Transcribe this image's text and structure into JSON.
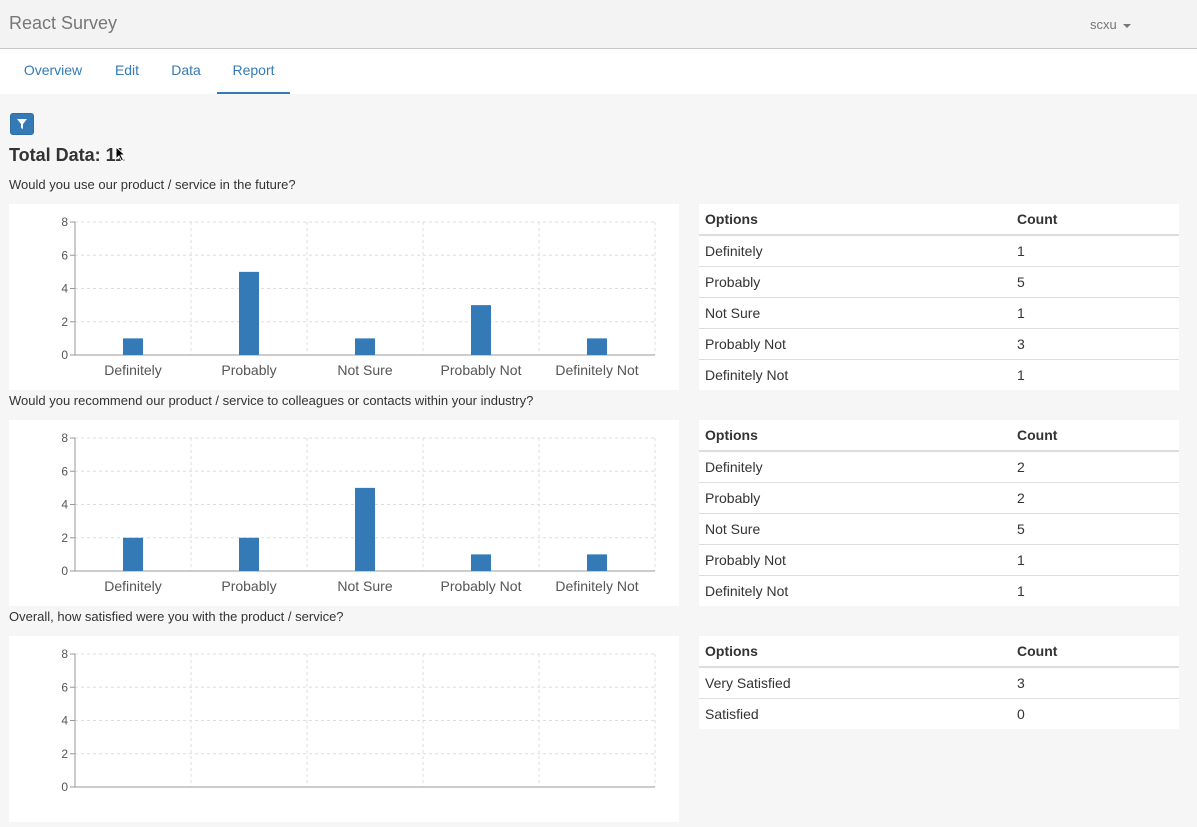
{
  "app": {
    "title": "React Survey",
    "user": "scxu"
  },
  "tabs": [
    {
      "label": "Overview"
    },
    {
      "label": "Edit"
    },
    {
      "label": "Data"
    },
    {
      "label": "Report"
    }
  ],
  "active_tab": "Report",
  "icons": {
    "filter": "filter-icon",
    "user_menu": "chevron-down-icon"
  },
  "total_label": "Total Data: 11",
  "table_headers": {
    "options": "Options",
    "count": "Count"
  },
  "colors": {
    "bar": "#337ab7",
    "link": "#337ab7"
  },
  "questions": [
    {
      "text": "Would you use our product / service in the future?"
    },
    {
      "text": "Would you recommend our product / service to colleagues or contacts within your industry?"
    },
    {
      "text": "Overall, how satisfied were you with the product / service?"
    }
  ],
  "tables": [
    [
      {
        "option": "Definitely",
        "count": "1"
      },
      {
        "option": "Probably",
        "count": "5"
      },
      {
        "option": "Not Sure",
        "count": "1"
      },
      {
        "option": "Probably Not",
        "count": "3"
      },
      {
        "option": "Definitely Not",
        "count": "1"
      }
    ],
    [
      {
        "option": "Definitely",
        "count": "2"
      },
      {
        "option": "Probably",
        "count": "2"
      },
      {
        "option": "Not Sure",
        "count": "5"
      },
      {
        "option": "Probably Not",
        "count": "1"
      },
      {
        "option": "Definitely Not",
        "count": "1"
      }
    ],
    [
      {
        "option": "Very Satisfied",
        "count": "3"
      },
      {
        "option": "Satisfied",
        "count": "0"
      }
    ]
  ],
  "chart_data": [
    {
      "type": "bar",
      "categories": [
        "Definitely",
        "Probably",
        "Not Sure",
        "Probably Not",
        "Definitely Not"
      ],
      "values": [
        1,
        5,
        1,
        3,
        1
      ],
      "ylim": [
        0,
        8
      ],
      "yticks": [
        "0",
        "2",
        "4",
        "6",
        "8"
      ],
      "grid": true
    },
    {
      "type": "bar",
      "categories": [
        "Definitely",
        "Probably",
        "Not Sure",
        "Probably Not",
        "Definitely Not"
      ],
      "values": [
        2,
        2,
        5,
        1,
        1
      ],
      "ylim": [
        0,
        8
      ],
      "yticks": [
        "0",
        "2",
        "4",
        "6",
        "8"
      ],
      "grid": true
    },
    {
      "type": "bar",
      "categories": [],
      "values": [],
      "ylim": [
        0,
        8
      ],
      "yticks": [
        "0",
        "2",
        "4",
        "6",
        "8"
      ],
      "grid": true
    }
  ]
}
